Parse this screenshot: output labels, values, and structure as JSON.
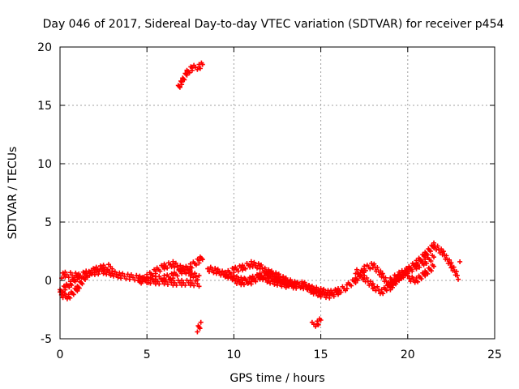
{
  "chart_data": {
    "type": "scatter",
    "title": "Day 046 of 2017, Sidereal Day-to-day VTEC variation (SDTVAR) for receiver p454",
    "xlabel": "GPS time / hours",
    "ylabel": "SDTVAR / TECUs",
    "xlim": [
      0,
      25
    ],
    "ylim": [
      -5,
      20
    ],
    "xticks": [
      0,
      5,
      10,
      15,
      20,
      25
    ],
    "yticks": [
      -5,
      0,
      5,
      10,
      15,
      20
    ],
    "xtick_labels": [
      "0",
      "5",
      "10",
      "15",
      "20",
      "25"
    ],
    "ytick_labels": [
      "-5",
      "0",
      "5",
      "10",
      "15",
      "20"
    ],
    "grid": true,
    "marker": "+",
    "series": [
      {
        "name": "SDTVAR",
        "color": "#ff0000",
        "traces": [
          {
            "x": [
              0.0,
              0.3,
              0.6,
              1.0,
              1.5,
              2.0,
              2.5,
              3.0,
              3.5,
              4.0,
              4.5,
              5.0,
              5.5,
              6.0,
              6.5,
              7.0,
              7.5,
              8.0
            ],
            "y": [
              -1.0,
              -0.6,
              -0.3,
              0.3,
              0.6,
              0.7,
              0.8,
              0.6,
              0.4,
              0.3,
              0.2,
              0.0,
              -0.1,
              -0.1,
              -0.2,
              -0.2,
              -0.2,
              -0.3
            ]
          },
          {
            "x": [
              0.0,
              0.5,
              1.0,
              1.5,
              2.0,
              2.5,
              3.0
            ],
            "y": [
              -1.2,
              -1.4,
              -0.7,
              0.4,
              0.9,
              1.1,
              1.2
            ]
          },
          {
            "x": [
              4.5,
              5.0,
              5.5,
              6.0,
              6.5,
              7.0,
              7.5,
              8.0
            ],
            "y": [
              -0.2,
              0.3,
              0.8,
              1.2,
              1.4,
              1.0,
              0.6,
              0.2
            ]
          },
          {
            "x": [
              5.0,
              5.5,
              6.0,
              6.5,
              7.0,
              7.5,
              8.0,
              8.2
            ],
            "y": [
              0.0,
              0.1,
              0.2,
              0.4,
              0.8,
              1.2,
              1.7,
              2.0
            ]
          },
          {
            "x": [
              6.8,
              7.0,
              7.3,
              7.6,
              8.0,
              8.2
            ],
            "y": [
              16.5,
              17.0,
              17.8,
              18.2,
              18.3,
              18.5
            ]
          },
          {
            "x": [
              7.9,
              8.1
            ],
            "y": [
              -4.2,
              -3.8
            ]
          },
          {
            "x": [
              8.5,
              9.0,
              9.5,
              10.0,
              10.5,
              11.0,
              11.5,
              12.0,
              12.5,
              13.0,
              13.5,
              14.0,
              14.5,
              15.0,
              15.5,
              16.0,
              16.5
            ],
            "y": [
              1.0,
              0.8,
              0.5,
              0.2,
              0.0,
              -0.1,
              0.3,
              0.7,
              0.4,
              0.0,
              -0.3,
              -0.5,
              -0.7,
              -0.9,
              -1.1,
              -0.9,
              -0.6
            ]
          },
          {
            "x": [
              9.5,
              10.0,
              10.5,
              11.0,
              11.5,
              12.0,
              12.5,
              13.0,
              13.5,
              14.0,
              14.5,
              15.0,
              15.5,
              16.0
            ],
            "y": [
              0.5,
              0.9,
              1.1,
              1.4,
              1.2,
              0.6,
              0.1,
              -0.2,
              -0.5,
              -0.3,
              -0.9,
              -1.2,
              -1.3,
              -1.0
            ]
          },
          {
            "x": [
              10.0,
              10.5,
              11.0,
              11.5,
              12.0,
              12.5,
              13.0
            ],
            "y": [
              0.0,
              -0.2,
              0.1,
              0.4,
              0.0,
              -0.2,
              -0.4
            ]
          },
          {
            "x": [
              14.5,
              14.8,
              15.0
            ],
            "y": [
              -3.8,
              -3.7,
              -3.4
            ]
          },
          {
            "x": [
              16.5,
              17.0,
              17.5,
              18.0,
              18.5,
              19.0,
              19.5,
              20.0,
              20.5,
              21.0,
              21.5
            ],
            "y": [
              -0.5,
              0.0,
              1.0,
              1.3,
              0.5,
              -0.6,
              0.2,
              0.8,
              1.2,
              1.6,
              2.0
            ]
          },
          {
            "x": [
              17.0,
              17.5,
              18.0,
              18.5,
              19.0,
              19.5,
              20.0
            ],
            "y": [
              0.8,
              0.2,
              -0.5,
              -1.0,
              -0.4,
              0.3,
              0.6
            ]
          },
          {
            "x": [
              19.0,
              19.5,
              20.0,
              20.5,
              21.0,
              21.5,
              22.0,
              22.5,
              22.9
            ],
            "y": [
              0.0,
              0.5,
              0.9,
              1.5,
              2.2,
              3.0,
              2.4,
              1.3,
              0.3
            ]
          },
          {
            "x": [
              20.0,
              20.5,
              21.0,
              21.5
            ],
            "y": [
              0.2,
              0.0,
              0.6,
              1.2
            ]
          },
          {
            "x": [
              23.0
            ],
            "y": [
              1.6
            ]
          },
          {
            "x": [
              0.1,
              0.3,
              1.1
            ],
            "y": [
              0.4,
              0.5,
              0.4
            ]
          }
        ]
      }
    ]
  }
}
